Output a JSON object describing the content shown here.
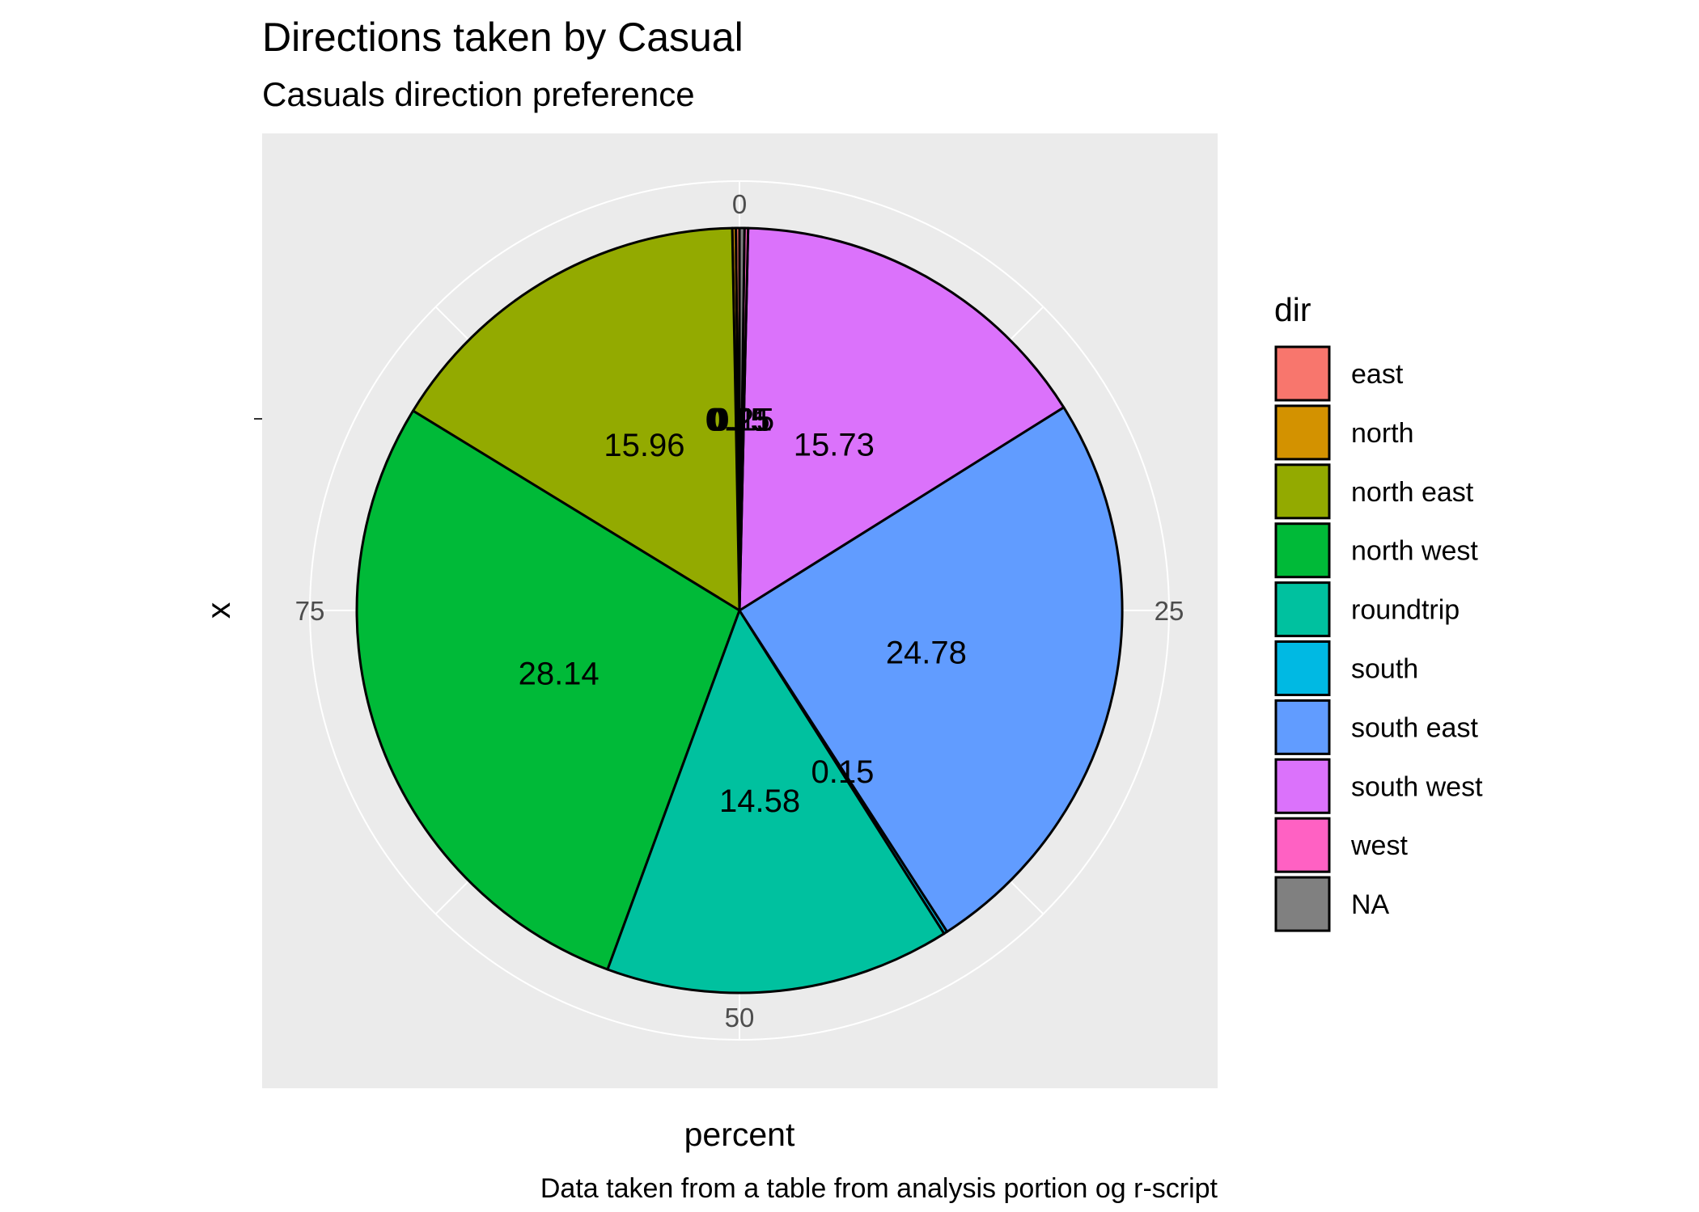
{
  "chart_data": {
    "type": "pie",
    "title": "Directions taken by Casual",
    "subtitle": "Casuals direction preference",
    "xlabel": "percent",
    "ylabel": "x",
    "caption": "Data taken from a table from analysis portion og r-script",
    "legend": {
      "title": "dir",
      "position": "right"
    },
    "theta_ticks": [
      "0",
      "25",
      "50",
      "75"
    ],
    "theta_range": [
      0,
      100
    ],
    "grid": true,
    "slices": [
      {
        "name": "east",
        "value": 0.15,
        "label": "0.15",
        "color": "#F8766D"
      },
      {
        "name": "north",
        "value": 0.15,
        "label": "0.15",
        "color": "#D39200"
      },
      {
        "name": "north east",
        "value": 15.96,
        "label": "15.96",
        "color": "#93AA00"
      },
      {
        "name": "north west",
        "value": 28.14,
        "label": "28.14",
        "color": "#00BA38"
      },
      {
        "name": "roundtrip",
        "value": 14.58,
        "label": "14.58",
        "color": "#00C19F"
      },
      {
        "name": "south",
        "value": 0.15,
        "label": "0.15",
        "color": "#00B9E3"
      },
      {
        "name": "south east",
        "value": 24.78,
        "label": "24.78",
        "color": "#619CFF"
      },
      {
        "name": "south west",
        "value": 15.73,
        "label": "15.73",
        "color": "#DB72FB"
      },
      {
        "name": "west",
        "value": 0.15,
        "label": "0.15",
        "color": "#FF61C3"
      },
      {
        "name": "NA",
        "value": 0.21,
        "label": "0.21",
        "color": "#808080"
      }
    ]
  }
}
